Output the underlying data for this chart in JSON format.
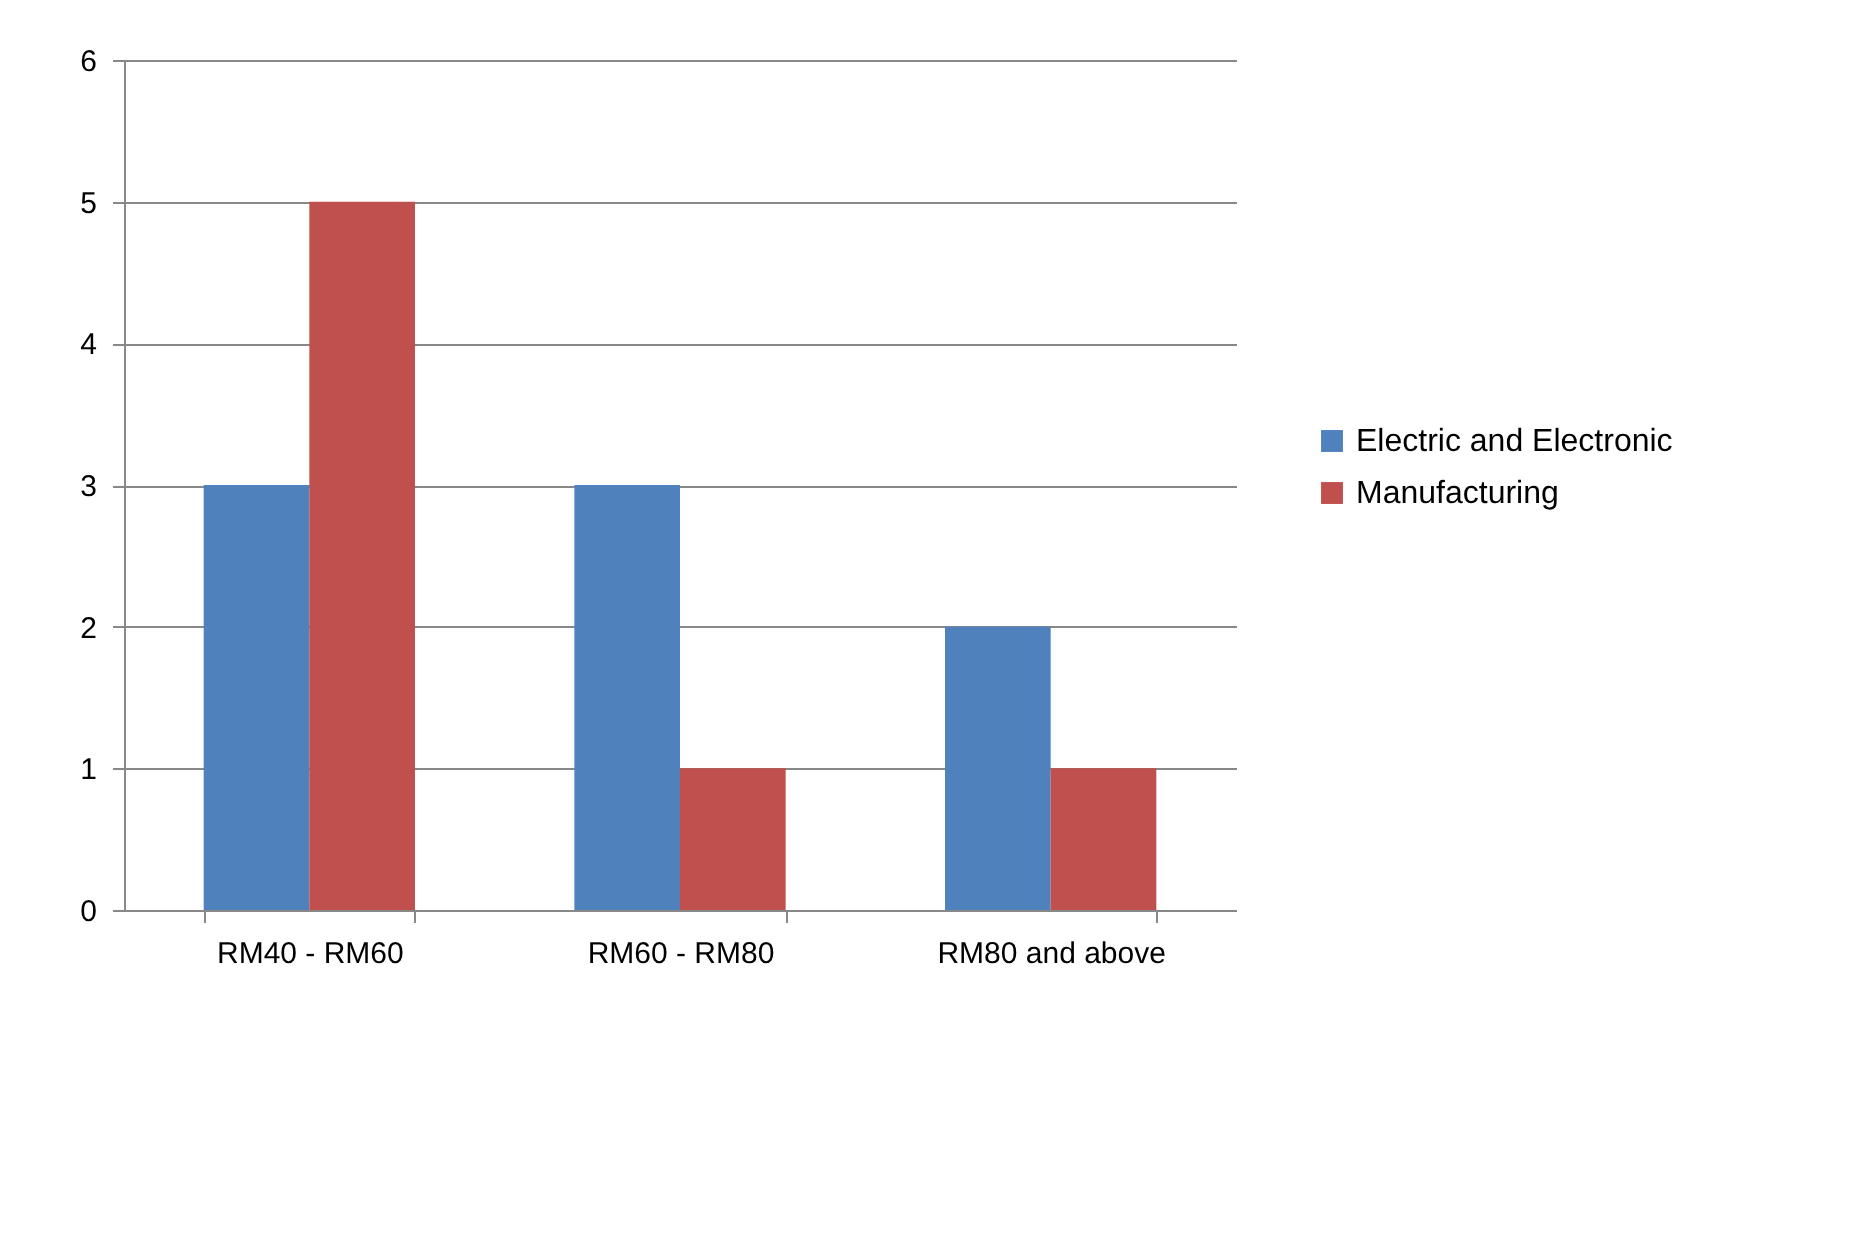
{
  "chart_data": {
    "type": "bar",
    "categories": [
      "RM40 - RM60",
      "RM60 - RM80",
      "RM80 and above"
    ],
    "series": [
      {
        "name": "Electric and Electronic",
        "color": "#4f81bd",
        "values": [
          3,
          3,
          2
        ]
      },
      {
        "name": "Manufacturing",
        "color": "#c0504d",
        "values": [
          5,
          1,
          1
        ]
      }
    ],
    "ylim": [
      0,
      6
    ],
    "yticks": [
      0,
      1,
      2,
      3,
      4,
      5,
      6
    ],
    "grid": "y",
    "legend": "right"
  }
}
